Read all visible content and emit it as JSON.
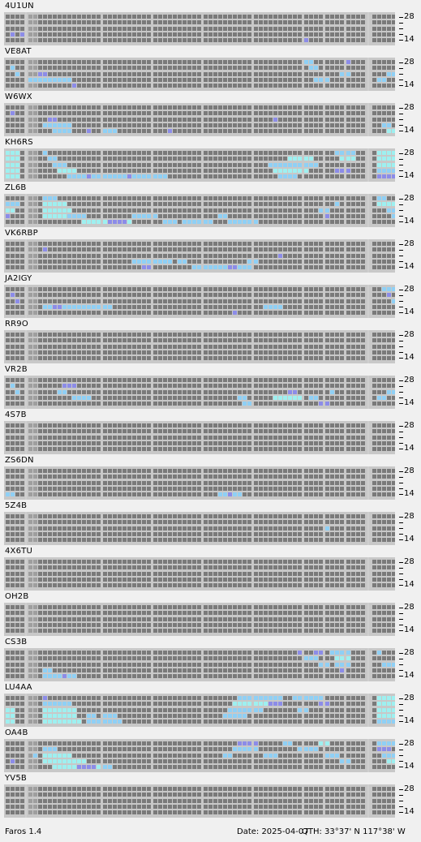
{
  "app": {
    "name": "Faros 1.4"
  },
  "status": {
    "date": "Date: 2025-04-07",
    "qth": "QTH: 33°37' N  117°38' W"
  },
  "band_scale": {
    "top": "28",
    "bottom": "14"
  },
  "colors": {
    "empty": "#7a7a7a",
    "gap": "#9e9e9e",
    "divider": "#d6d6d6",
    "weak": "#8c8ce8",
    "medium": "#8fd0f5",
    "strong": "#9ef0f0"
  },
  "beacons": [
    {
      "callsign": "4U1UN",
      "activity": [
        [
          1,
          3,
          1,
          "weak"
        ],
        [
          3,
          3,
          1,
          "weak"
        ],
        [
          59,
          4,
          1,
          "weak"
        ]
      ]
    },
    {
      "callsign": "VE8AT",
      "activity": [
        [
          1,
          1,
          1,
          "medium"
        ],
        [
          2,
          2,
          1,
          "medium"
        ],
        [
          4,
          3,
          6,
          "medium"
        ],
        [
          6,
          2,
          2,
          "weak"
        ],
        [
          10,
          3,
          3,
          "medium"
        ],
        [
          13,
          4,
          1,
          "weak"
        ],
        [
          59,
          0,
          2,
          "medium"
        ],
        [
          60,
          1,
          2,
          "medium"
        ],
        [
          61,
          3,
          3,
          "medium"
        ],
        [
          66,
          2,
          2,
          "medium"
        ],
        [
          67,
          0,
          1,
          "weak"
        ],
        [
          72,
          3,
          2,
          "medium"
        ],
        [
          74,
          2,
          2,
          "medium"
        ],
        [
          77,
          1,
          1,
          "weak"
        ]
      ]
    },
    {
      "callsign": "W6WX",
      "activity": [
        [
          1,
          1,
          1,
          "weak"
        ],
        [
          7,
          3,
          6,
          "medium"
        ],
        [
          8,
          2,
          2,
          "weak"
        ],
        [
          9,
          4,
          4,
          "medium"
        ],
        [
          16,
          4,
          1,
          "weak"
        ],
        [
          19,
          4,
          3,
          "medium"
        ],
        [
          32,
          4,
          1,
          "weak"
        ],
        [
          53,
          2,
          1,
          "weak"
        ],
        [
          73,
          3,
          2,
          "medium"
        ],
        [
          74,
          4,
          5,
          "strong"
        ],
        [
          76,
          2,
          2,
          "weak"
        ]
      ]
    },
    {
      "callsign": "KH6RS",
      "activity": [
        [
          0,
          0,
          3,
          "strong"
        ],
        [
          0,
          1,
          3,
          "strong"
        ],
        [
          0,
          2,
          3,
          "strong"
        ],
        [
          0,
          3,
          3,
          "strong"
        ],
        [
          0,
          4,
          3,
          "strong"
        ],
        [
          7,
          0,
          1,
          "medium"
        ],
        [
          8,
          1,
          2,
          "medium"
        ],
        [
          9,
          2,
          3,
          "medium"
        ],
        [
          10,
          3,
          4,
          "strong"
        ],
        [
          12,
          4,
          20,
          "medium"
        ],
        [
          16,
          4,
          1,
          "weak"
        ],
        [
          24,
          4,
          1,
          "weak"
        ],
        [
          52,
          2,
          10,
          "medium"
        ],
        [
          53,
          3,
          7,
          "strong"
        ],
        [
          54,
          4,
          4,
          "medium"
        ],
        [
          56,
          1,
          5,
          "strong"
        ],
        [
          65,
          0,
          4,
          "medium"
        ],
        [
          66,
          1,
          3,
          "strong"
        ],
        [
          65,
          3,
          3,
          "weak"
        ],
        [
          72,
          0,
          9,
          "strong"
        ],
        [
          72,
          1,
          9,
          "strong"
        ],
        [
          72,
          2,
          9,
          "strong"
        ],
        [
          72,
          3,
          9,
          "medium"
        ],
        [
          72,
          4,
          4,
          "weak"
        ]
      ]
    },
    {
      "callsign": "ZL6B",
      "activity": [
        [
          0,
          1,
          3,
          "medium"
        ],
        [
          0,
          2,
          2,
          "strong"
        ],
        [
          0,
          3,
          1,
          "weak"
        ],
        [
          7,
          0,
          3,
          "medium"
        ],
        [
          7,
          1,
          5,
          "strong"
        ],
        [
          7,
          2,
          6,
          "strong"
        ],
        [
          7,
          3,
          7,
          "strong"
        ],
        [
          12,
          3,
          4,
          "medium"
        ],
        [
          15,
          4,
          10,
          "strong"
        ],
        [
          20,
          4,
          4,
          "weak"
        ],
        [
          25,
          3,
          5,
          "medium"
        ],
        [
          31,
          4,
          3,
          "medium"
        ],
        [
          35,
          4,
          6,
          "medium"
        ],
        [
          42,
          3,
          2,
          "medium"
        ],
        [
          44,
          4,
          6,
          "medium"
        ],
        [
          62,
          2,
          2,
          "medium"
        ],
        [
          63,
          3,
          1,
          "weak"
        ],
        [
          65,
          1,
          1,
          "medium"
        ],
        [
          72,
          0,
          2,
          "medium"
        ],
        [
          72,
          1,
          9,
          "strong"
        ],
        [
          74,
          2,
          7,
          "medium"
        ],
        [
          75,
          3,
          5,
          "medium"
        ]
      ]
    },
    {
      "callsign": "VK6RBP",
      "activity": [
        [
          7,
          1,
          1,
          "weak"
        ],
        [
          25,
          3,
          8,
          "medium"
        ],
        [
          27,
          4,
          2,
          "weak"
        ],
        [
          34,
          3,
          2,
          "medium"
        ],
        [
          37,
          4,
          12,
          "medium"
        ],
        [
          44,
          4,
          2,
          "weak"
        ],
        [
          48,
          3,
          2,
          "medium"
        ],
        [
          54,
          2,
          1,
          "weak"
        ]
      ]
    },
    {
      "callsign": "JA2IGY",
      "activity": [
        [
          1,
          1,
          1,
          "weak"
        ],
        [
          2,
          2,
          1,
          "weak"
        ],
        [
          7,
          3,
          14,
          "medium"
        ],
        [
          9,
          3,
          2,
          "weak"
        ],
        [
          16,
          3,
          2,
          "medium"
        ],
        [
          45,
          4,
          1,
          "weak"
        ],
        [
          51,
          3,
          4,
          "medium"
        ],
        [
          73,
          0,
          3,
          "medium"
        ],
        [
          74,
          1,
          1,
          "weak"
        ],
        [
          75,
          2,
          2,
          "medium"
        ],
        [
          76,
          3,
          1,
          "weak"
        ]
      ]
    },
    {
      "callsign": "RR9O",
      "activity": []
    },
    {
      "callsign": "VR2B",
      "activity": [
        [
          1,
          1,
          1,
          "medium"
        ],
        [
          2,
          2,
          1,
          "medium"
        ],
        [
          10,
          2,
          2,
          "medium"
        ],
        [
          11,
          1,
          3,
          "weak"
        ],
        [
          13,
          3,
          4,
          "medium"
        ],
        [
          46,
          3,
          2,
          "medium"
        ],
        [
          47,
          4,
          2,
          "medium"
        ],
        [
          53,
          3,
          6,
          "strong"
        ],
        [
          56,
          2,
          2,
          "weak"
        ],
        [
          60,
          3,
          2,
          "medium"
        ],
        [
          62,
          4,
          2,
          "weak"
        ],
        [
          64,
          2,
          1,
          "medium"
        ],
        [
          72,
          3,
          2,
          "medium"
        ],
        [
          74,
          2,
          3,
          "medium"
        ],
        [
          76,
          1,
          4,
          "medium"
        ],
        [
          77,
          0,
          3,
          "weak"
        ],
        [
          77,
          3,
          2,
          "medium"
        ]
      ]
    },
    {
      "callsign": "4S7B",
      "activity": []
    },
    {
      "callsign": "ZS6DN",
      "activity": [
        [
          0,
          4,
          2,
          "medium"
        ],
        [
          42,
          4,
          5,
          "medium"
        ],
        [
          44,
          4,
          1,
          "weak"
        ]
      ]
    },
    {
      "callsign": "5Z4B",
      "activity": [
        [
          63,
          2,
          1,
          "medium"
        ]
      ]
    },
    {
      "callsign": "4X6TU",
      "activity": []
    },
    {
      "callsign": "OH2B",
      "activity": []
    },
    {
      "callsign": "CS3B",
      "activity": [
        [
          7,
          3,
          2,
          "medium"
        ],
        [
          7,
          4,
          7,
          "medium"
        ],
        [
          11,
          4,
          1,
          "weak"
        ],
        [
          58,
          0,
          1,
          "weak"
        ],
        [
          59,
          1,
          3,
          "medium"
        ],
        [
          61,
          0,
          2,
          "weak"
        ],
        [
          62,
          2,
          2,
          "medium"
        ],
        [
          64,
          0,
          4,
          "medium"
        ],
        [
          65,
          1,
          3,
          "strong"
        ],
        [
          65,
          2,
          3,
          "medium"
        ],
        [
          66,
          3,
          1,
          "weak"
        ],
        [
          72,
          0,
          1,
          "medium"
        ],
        [
          73,
          2,
          3,
          "medium"
        ]
      ]
    },
    {
      "callsign": "LU4AA",
      "activity": [
        [
          0,
          2,
          2,
          "strong"
        ],
        [
          0,
          3,
          2,
          "strong"
        ],
        [
          0,
          4,
          2,
          "strong"
        ],
        [
          7,
          0,
          1,
          "weak"
        ],
        [
          7,
          1,
          6,
          "medium"
        ],
        [
          7,
          2,
          7,
          "strong"
        ],
        [
          7,
          3,
          7,
          "strong"
        ],
        [
          7,
          4,
          8,
          "strong"
        ],
        [
          16,
          3,
          2,
          "medium"
        ],
        [
          16,
          4,
          7,
          "medium"
        ],
        [
          19,
          3,
          3,
          "medium"
        ],
        [
          46,
          0,
          9,
          "medium"
        ],
        [
          45,
          1,
          10,
          "strong"
        ],
        [
          44,
          2,
          7,
          "medium"
        ],
        [
          43,
          3,
          5,
          "medium"
        ],
        [
          52,
          1,
          3,
          "weak"
        ],
        [
          57,
          0,
          6,
          "medium"
        ],
        [
          58,
          2,
          2,
          "medium"
        ],
        [
          62,
          1,
          2,
          "weak"
        ],
        [
          72,
          0,
          9,
          "strong"
        ],
        [
          72,
          1,
          9,
          "strong"
        ],
        [
          72,
          2,
          9,
          "strong"
        ],
        [
          72,
          3,
          9,
          "strong"
        ],
        [
          72,
          4,
          6,
          "medium"
        ]
      ]
    },
    {
      "callsign": "OA4B",
      "activity": [
        [
          1,
          3,
          1,
          "weak"
        ],
        [
          5,
          2,
          1,
          "medium"
        ],
        [
          7,
          1,
          3,
          "medium"
        ],
        [
          7,
          2,
          6,
          "strong"
        ],
        [
          7,
          3,
          9,
          "strong"
        ],
        [
          9,
          4,
          10,
          "strong"
        ],
        [
          14,
          4,
          4,
          "weak"
        ],
        [
          19,
          4,
          2,
          "medium"
        ],
        [
          43,
          2,
          2,
          "medium"
        ],
        [
          45,
          1,
          5,
          "medium"
        ],
        [
          46,
          0,
          4,
          "weak"
        ],
        [
          51,
          2,
          3,
          "medium"
        ],
        [
          55,
          0,
          2,
          "medium"
        ],
        [
          58,
          1,
          4,
          "medium"
        ],
        [
          62,
          0,
          2,
          "strong"
        ],
        [
          63,
          2,
          3,
          "medium"
        ],
        [
          66,
          3,
          2,
          "medium"
        ],
        [
          72,
          0,
          4,
          "medium"
        ],
        [
          72,
          1,
          3,
          "weak"
        ],
        [
          73,
          2,
          5,
          "medium"
        ],
        [
          74,
          3,
          4,
          "strong"
        ]
      ]
    },
    {
      "callsign": "YV5B",
      "activity": []
    }
  ]
}
